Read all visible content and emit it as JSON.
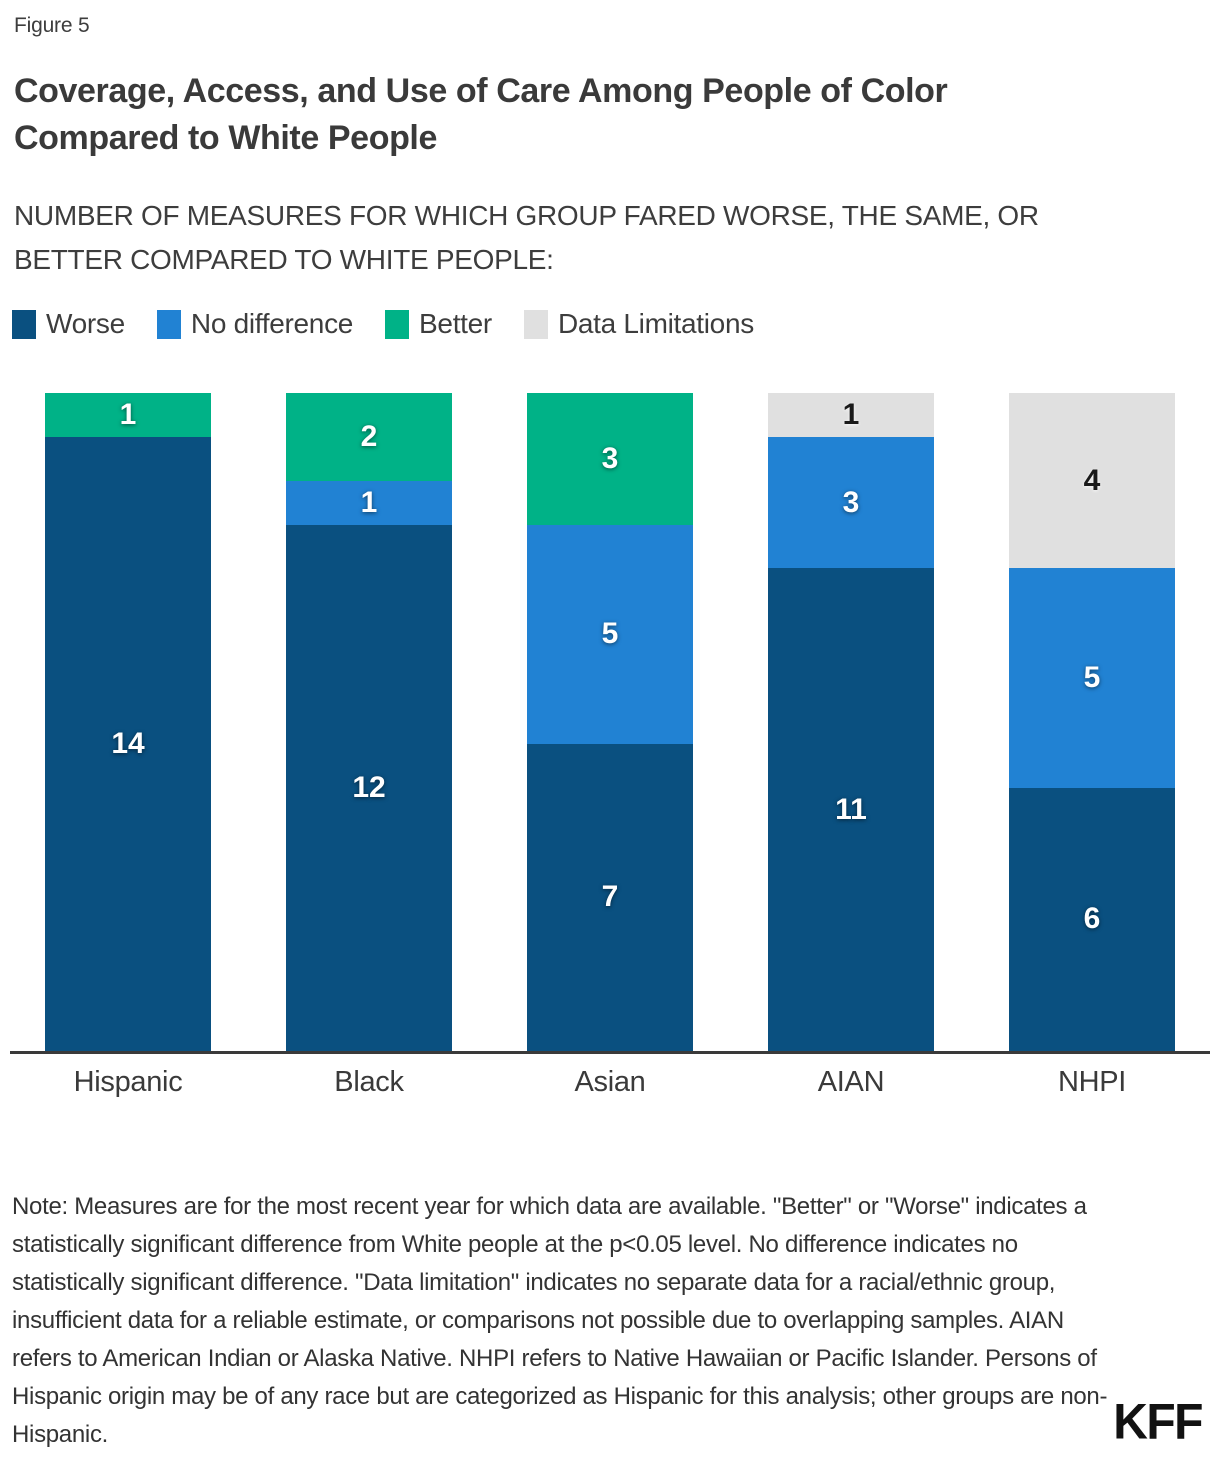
{
  "figure_label": "Figure 5",
  "title": {
    "line1": "Coverage, Access, and Use of Care Among People of Color",
    "line2": "Compared to White People"
  },
  "subtitle": {
    "line1": "NUMBER OF MEASURES FOR WHICH GROUP FARED WORSE, THE SAME, OR",
    "line2": "BETTER COMPARED TO WHITE PEOPLE:"
  },
  "chart_data": {
    "type": "bar",
    "subtype": "stacked-vertical",
    "title": "Coverage, Access, and Use of Care Among People of Color Compared to White People",
    "subtitle": "NUMBER OF MEASURES FOR WHICH GROUP FARED WORSE, THE SAME, OR BETTER COMPARED TO WHITE PEOPLE:",
    "categories": [
      "Hispanic",
      "Black",
      "Asian",
      "AIAN",
      "NHPI"
    ],
    "series": [
      {
        "name": "Worse",
        "color": "#0a5080",
        "label_color": "#ffffff",
        "values": [
          14,
          12,
          7,
          11,
          6
        ]
      },
      {
        "name": "No difference",
        "color": "#2182d3",
        "label_color": "#ffffff",
        "values": [
          0,
          1,
          5,
          3,
          5
        ]
      },
      {
        "name": "Better",
        "color": "#00b287",
        "label_color": "#ffffff",
        "values": [
          1,
          2,
          3,
          0,
          0
        ]
      },
      {
        "name": "Data Limitations",
        "color": "#e0e0e0",
        "label_color": "#1a1a1a",
        "values": [
          0,
          0,
          0,
          1,
          4
        ]
      }
    ],
    "stack_total": 15,
    "ylim": [
      0,
      15
    ],
    "grid": false,
    "legend_position": "top",
    "axis_color": "#3a3a3a"
  },
  "note": "Note: Measures are for the most recent year for which data are available. \"Better\" or \"Worse\" indicates a statistically significant difference from White people at the p<0.05 level. No difference indicates no statistically significant difference. \"Data limitation\" indicates no separate data for a racial/ethnic group, insufficient data for a reliable estimate, or comparisons not possible due to overlapping samples. AIAN refers to American Indian or Alaska Native. NHPI refers to Native Hawaiian or Pacific Islander. Persons of Hispanic origin may be of any race but are categorized as Hispanic for this analysis; other groups are non-Hispanic.",
  "logo": "KFF"
}
